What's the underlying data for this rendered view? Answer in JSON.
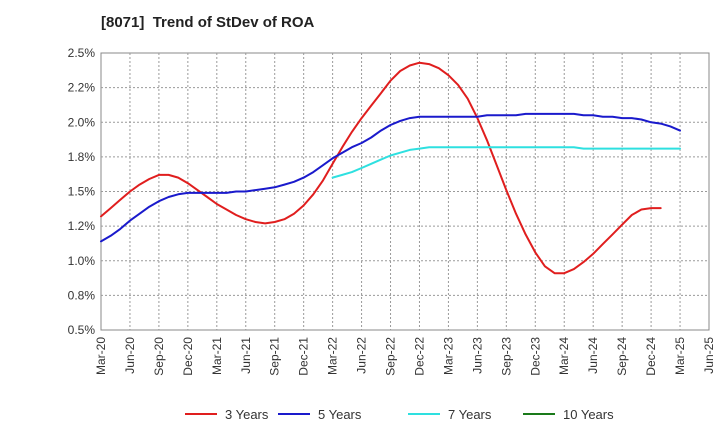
{
  "title": "[8071]  Trend of StDev of ROA",
  "chart_data": {
    "type": "line",
    "title": "[8071]  Trend of StDev of ROA",
    "xlabel": "",
    "ylabel": "",
    "x_ticks": [
      "Mar-20",
      "Jun-20",
      "Sep-20",
      "Dec-20",
      "Mar-21",
      "Jun-21",
      "Sep-21",
      "Dec-21",
      "Mar-22",
      "Jun-22",
      "Sep-22",
      "Dec-22",
      "Mar-23",
      "Jun-23",
      "Sep-23",
      "Dec-23",
      "Mar-24",
      "Jun-24",
      "Sep-24",
      "Dec-24",
      "Mar-25",
      "Jun-25"
    ],
    "y_ticks": [
      "0.5%",
      "0.8%",
      "1.0%",
      "1.2%",
      "1.5%",
      "1.8%",
      "2.0%",
      "2.2%",
      "2.5%"
    ],
    "ylim": [
      0.5,
      2.5
    ],
    "grid": true,
    "legend_position": "bottom",
    "series": [
      {
        "name": "3 Years",
        "color": "#e01e1e",
        "points": [
          [
            "Mar-20",
            1.32
          ],
          [
            "Apr-20",
            1.38
          ],
          [
            "May-20",
            1.44
          ],
          [
            "Jun-20",
            1.5
          ],
          [
            "Jul-20",
            1.55
          ],
          [
            "Aug-20",
            1.59
          ],
          [
            "Sep-20",
            1.62
          ],
          [
            "Oct-20",
            1.62
          ],
          [
            "Nov-20",
            1.6
          ],
          [
            "Dec-20",
            1.56
          ],
          [
            "Jan-21",
            1.51
          ],
          [
            "Feb-21",
            1.46
          ],
          [
            "Mar-21",
            1.41
          ],
          [
            "Apr-21",
            1.37
          ],
          [
            "May-21",
            1.33
          ],
          [
            "Jun-21",
            1.3
          ],
          [
            "Jul-21",
            1.28
          ],
          [
            "Aug-21",
            1.27
          ],
          [
            "Sep-21",
            1.28
          ],
          [
            "Oct-21",
            1.3
          ],
          [
            "Nov-21",
            1.34
          ],
          [
            "Dec-21",
            1.4
          ],
          [
            "Jan-22",
            1.48
          ],
          [
            "Feb-22",
            1.58
          ],
          [
            "Mar-22",
            1.7
          ],
          [
            "Apr-22",
            1.82
          ],
          [
            "May-22",
            1.93
          ],
          [
            "Jun-22",
            2.03
          ],
          [
            "Jul-22",
            2.12
          ],
          [
            "Aug-22",
            2.21
          ],
          [
            "Sep-22",
            2.3
          ],
          [
            "Oct-22",
            2.37
          ],
          [
            "Nov-22",
            2.41
          ],
          [
            "Dec-22",
            2.43
          ],
          [
            "Jan-23",
            2.42
          ],
          [
            "Feb-23",
            2.39
          ],
          [
            "Mar-23",
            2.34
          ],
          [
            "Apr-23",
            2.27
          ],
          [
            "May-23",
            2.17
          ],
          [
            "Jun-23",
            2.03
          ],
          [
            "Jul-23",
            1.87
          ],
          [
            "Aug-23",
            1.69
          ],
          [
            "Sep-23",
            1.51
          ],
          [
            "Oct-23",
            1.34
          ],
          [
            "Nov-23",
            1.19
          ],
          [
            "Dec-23",
            1.06
          ],
          [
            "Jan-24",
            0.96
          ],
          [
            "Feb-24",
            0.91
          ],
          [
            "Mar-24",
            0.91
          ],
          [
            "Apr-24",
            0.94
          ],
          [
            "May-24",
            0.99
          ],
          [
            "Jun-24",
            1.05
          ],
          [
            "Jul-24",
            1.12
          ],
          [
            "Aug-24",
            1.19
          ],
          [
            "Sep-24",
            1.26
          ],
          [
            "Oct-24",
            1.33
          ],
          [
            "Nov-24",
            1.37
          ],
          [
            "Dec-24",
            1.38
          ],
          [
            "Jan-25",
            1.38
          ]
        ]
      },
      {
        "name": "5 Years",
        "color": "#1a1acc",
        "points": [
          [
            "Mar-20",
            1.14
          ],
          [
            "Apr-20",
            1.18
          ],
          [
            "May-20",
            1.23
          ],
          [
            "Jun-20",
            1.29
          ],
          [
            "Jul-20",
            1.34
          ],
          [
            "Aug-20",
            1.39
          ],
          [
            "Sep-20",
            1.43
          ],
          [
            "Oct-20",
            1.46
          ],
          [
            "Nov-20",
            1.48
          ],
          [
            "Dec-20",
            1.49
          ],
          [
            "Jan-21",
            1.49
          ],
          [
            "Feb-21",
            1.49
          ],
          [
            "Mar-21",
            1.49
          ],
          [
            "Apr-21",
            1.49
          ],
          [
            "May-21",
            1.5
          ],
          [
            "Jun-21",
            1.5
          ],
          [
            "Jul-21",
            1.51
          ],
          [
            "Aug-21",
            1.52
          ],
          [
            "Sep-21",
            1.53
          ],
          [
            "Oct-21",
            1.55
          ],
          [
            "Nov-21",
            1.57
          ],
          [
            "Dec-21",
            1.6
          ],
          [
            "Jan-22",
            1.64
          ],
          [
            "Feb-22",
            1.69
          ],
          [
            "Mar-22",
            1.74
          ],
          [
            "Apr-22",
            1.78
          ],
          [
            "May-22",
            1.82
          ],
          [
            "Jun-22",
            1.85
          ],
          [
            "Jul-22",
            1.89
          ],
          [
            "Aug-22",
            1.94
          ],
          [
            "Sep-22",
            1.98
          ],
          [
            "Oct-22",
            2.01
          ],
          [
            "Nov-22",
            2.03
          ],
          [
            "Dec-22",
            2.04
          ],
          [
            "Jan-23",
            2.04
          ],
          [
            "Feb-23",
            2.04
          ],
          [
            "Mar-23",
            2.04
          ],
          [
            "Apr-23",
            2.04
          ],
          [
            "May-23",
            2.04
          ],
          [
            "Jun-23",
            2.04
          ],
          [
            "Jul-23",
            2.05
          ],
          [
            "Aug-23",
            2.05
          ],
          [
            "Sep-23",
            2.05
          ],
          [
            "Oct-23",
            2.05
          ],
          [
            "Nov-23",
            2.06
          ],
          [
            "Dec-23",
            2.06
          ],
          [
            "Jan-24",
            2.06
          ],
          [
            "Feb-24",
            2.06
          ],
          [
            "Mar-24",
            2.06
          ],
          [
            "Apr-24",
            2.06
          ],
          [
            "May-24",
            2.05
          ],
          [
            "Jun-24",
            2.05
          ],
          [
            "Jul-24",
            2.04
          ],
          [
            "Aug-24",
            2.04
          ],
          [
            "Sep-24",
            2.03
          ],
          [
            "Oct-24",
            2.03
          ],
          [
            "Nov-24",
            2.02
          ],
          [
            "Dec-24",
            2.0
          ],
          [
            "Jan-25",
            1.99
          ],
          [
            "Feb-25",
            1.97
          ],
          [
            "Mar-25",
            1.94
          ]
        ]
      },
      {
        "name": "7 Years",
        "color": "#2ee0e0",
        "points": [
          [
            "Mar-22",
            1.6
          ],
          [
            "Apr-22",
            1.62
          ],
          [
            "May-22",
            1.64
          ],
          [
            "Jun-22",
            1.67
          ],
          [
            "Jul-22",
            1.7
          ],
          [
            "Aug-22",
            1.73
          ],
          [
            "Sep-22",
            1.76
          ],
          [
            "Oct-22",
            1.78
          ],
          [
            "Nov-22",
            1.8
          ],
          [
            "Dec-22",
            1.81
          ],
          [
            "Jan-23",
            1.82
          ],
          [
            "Feb-23",
            1.82
          ],
          [
            "Mar-23",
            1.82
          ],
          [
            "Apr-23",
            1.82
          ],
          [
            "May-23",
            1.82
          ],
          [
            "Jun-23",
            1.82
          ],
          [
            "Jul-23",
            1.82
          ],
          [
            "Aug-23",
            1.82
          ],
          [
            "Sep-23",
            1.82
          ],
          [
            "Oct-23",
            1.82
          ],
          [
            "Nov-23",
            1.82
          ],
          [
            "Dec-23",
            1.82
          ],
          [
            "Jan-24",
            1.82
          ],
          [
            "Feb-24",
            1.82
          ],
          [
            "Mar-24",
            1.82
          ],
          [
            "Apr-24",
            1.82
          ],
          [
            "May-24",
            1.81
          ],
          [
            "Jun-24",
            1.81
          ],
          [
            "Jul-24",
            1.81
          ],
          [
            "Aug-24",
            1.81
          ],
          [
            "Sep-24",
            1.81
          ],
          [
            "Oct-24",
            1.81
          ],
          [
            "Nov-24",
            1.81
          ],
          [
            "Dec-24",
            1.81
          ],
          [
            "Jan-25",
            1.81
          ],
          [
            "Feb-25",
            1.81
          ],
          [
            "Mar-25",
            1.81
          ]
        ]
      },
      {
        "name": "10 Years",
        "color": "#1a7a1a",
        "points": []
      }
    ]
  }
}
